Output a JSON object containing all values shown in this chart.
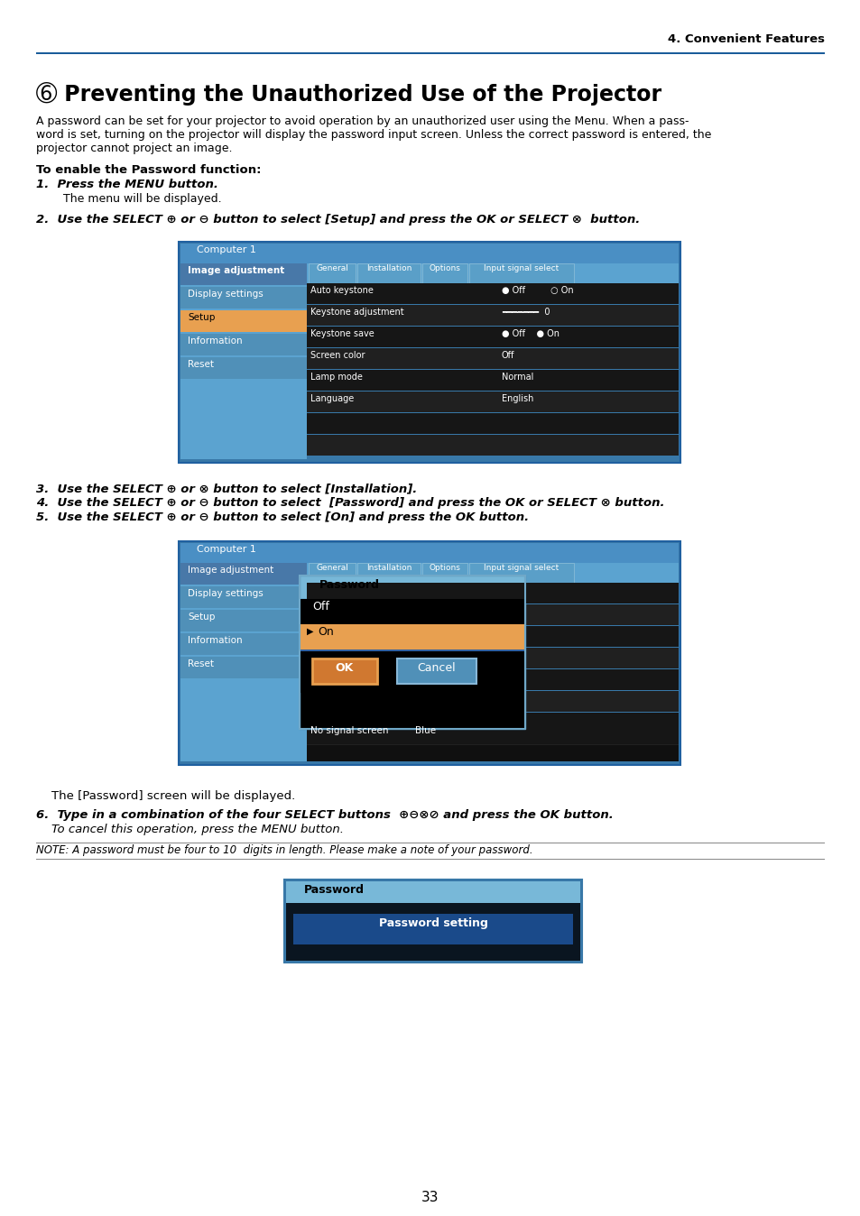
{
  "page_bg": "#ffffff",
  "header_text": "4. Convenient Features",
  "title_bullet": "➅",
  "title_text": " Preventing the Unauthorized Use of the Projector",
  "intro_line1": "A password can be set for your projector to avoid operation by an unauthorized user using the Menu. When a pass-",
  "intro_line2": "word is set, turning on the projector will display the password input screen. Unless the correct password is entered, the",
  "intro_line3": "projector cannot project an image.",
  "section_title": "To enable the Password function:",
  "step1_label": "1.  Press the MENU button.",
  "step1_body": "The menu will be displayed.",
  "step2_label": "2.  Use the SELECT ⊕ or ⊖ button to select [Setup] and press the OK or SELECT ⊗  button.",
  "step3_label": "3.  Use the SELECT ⊕ or ⊗ button to select [Installation].",
  "step4_label": "4.  Use the SELECT ⊕ or ⊖ button to select  [Password] and press the OK or SELECT ⊗ button.",
  "step5_label": "5.  Use the SELECT ⊕ or ⊖ button to select [On] and press the OK button.",
  "password_note": "    The [Password] screen will be displayed.",
  "step6_label": "6.  Type in a combination of the four SELECT buttons  ⊕⊖⊗⊘ and press the OK button.",
  "step6_indent": "    To cancel this operation, press the MENU button.",
  "note_text": "NOTE: A password must be four to 10  digits in length. Please make a note of your password.",
  "page_number": "33",
  "blue_outer": "#4a90c4",
  "blue_titlebar": "#5ba3d0",
  "blue_sidebar_light": "#5ba3d0",
  "blue_sidebar_dark": "#4a90c4",
  "orange": "#e8a050",
  "row_dark": "#1a1a1a",
  "row_mid": "#282828",
  "row_light": "#303030",
  "white": "#ffffff",
  "black": "#000000",
  "tab_bg": "#5090b8",
  "tab_text": "#ffffff",
  "content_dark": "#111111",
  "content_mid": "#1e1e1e"
}
